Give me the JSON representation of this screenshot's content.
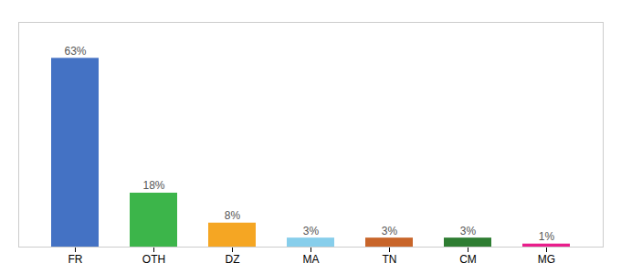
{
  "chart_data": {
    "type": "bar",
    "categories": [
      "FR",
      "OTH",
      "DZ",
      "MA",
      "TN",
      "CM",
      "MG"
    ],
    "values": [
      63,
      18,
      8,
      3,
      3,
      3,
      1
    ],
    "value_labels": [
      "63%",
      "18%",
      "8%",
      "3%",
      "3%",
      "3%",
      "1%"
    ],
    "colors": [
      "#4472c4",
      "#3cb54a",
      "#f5a623",
      "#87ceeb",
      "#c8652a",
      "#2e7d32",
      "#e91e8c"
    ],
    "ylim": [
      0,
      75
    ],
    "data_labels": true,
    "tick_labels": "x"
  }
}
